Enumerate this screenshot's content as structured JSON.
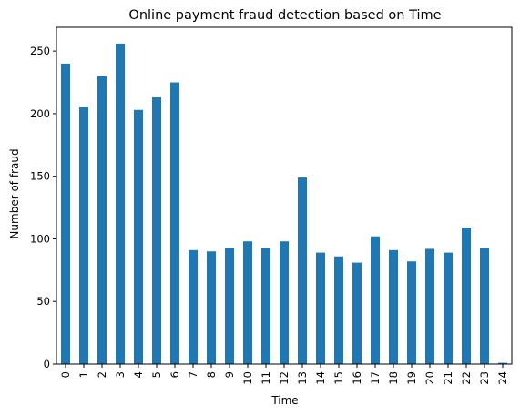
{
  "chart_data": {
    "type": "bar",
    "title": "Online payment fraud detection based on Time",
    "xlabel": "Time",
    "ylabel": "Number of fraud",
    "categories": [
      "0",
      "1",
      "2",
      "3",
      "4",
      "5",
      "6",
      "7",
      "8",
      "9",
      "10",
      "11",
      "12",
      "13",
      "14",
      "15",
      "16",
      "17",
      "18",
      "19",
      "20",
      "21",
      "22",
      "23",
      "24"
    ],
    "values": [
      240,
      205,
      230,
      256,
      203,
      213,
      225,
      91,
      90,
      93,
      98,
      93,
      98,
      149,
      89,
      86,
      81,
      102,
      91,
      82,
      92,
      89,
      109,
      93,
      1
    ],
    "ylim": [
      0,
      269
    ],
    "yticks": [
      0,
      50,
      100,
      150,
      200,
      250
    ],
    "grid": false,
    "bar_color": "#1f77b4"
  }
}
